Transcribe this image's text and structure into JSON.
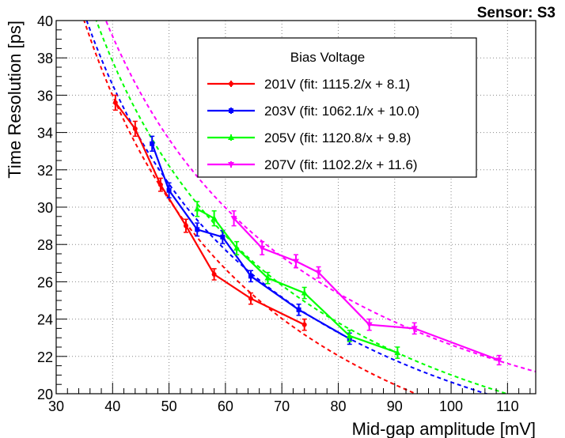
{
  "chart_data": {
    "type": "line",
    "title": "Sensor: S3",
    "xlabel": "Mid-gap amplitude [mV]",
    "ylabel": "Time Resolution [ps]",
    "xlim": [
      30,
      115
    ],
    "ylim": [
      20,
      40
    ],
    "x_ticks": [
      30,
      40,
      50,
      60,
      70,
      80,
      90,
      100,
      110
    ],
    "y_ticks": [
      20,
      22,
      24,
      26,
      28,
      30,
      32,
      34,
      36,
      38,
      40
    ],
    "grid": true,
    "legend": {
      "title": "Bias Voltage",
      "placement": "top-center"
    },
    "series": [
      {
        "name": "201V (fit: 1115.2/x + 8.1)",
        "color": "#ff0000",
        "marker": "circle",
        "fit": {
          "a": 1115.2,
          "b": 8.1
        },
        "x": [
          40.5,
          44,
          48.5,
          53,
          58,
          64.5,
          74
        ],
        "y": [
          35.6,
          34.2,
          31.2,
          29.0,
          26.4,
          25.1,
          23.7
        ],
        "yerr": [
          0.4,
          0.4,
          0.35,
          0.35,
          0.3,
          0.3,
          0.3
        ]
      },
      {
        "name": "203V (fit: 1062.1/x + 10.0)",
        "color": "#0000ff",
        "marker": "square",
        "fit": {
          "a": 1062.1,
          "b": 10.0
        },
        "x": [
          47,
          50,
          55,
          59.5,
          64.5,
          73,
          82
        ],
        "y": [
          33.4,
          30.9,
          28.8,
          28.4,
          26.3,
          24.5,
          22.95
        ],
        "yerr": [
          0.4,
          0.4,
          0.35,
          0.35,
          0.3,
          0.3,
          0.3
        ]
      },
      {
        "name": "205V (fit: 1120.8/x + 9.8)",
        "color": "#00ff00",
        "marker": "triangle-up",
        "fit": {
          "a": 1120.8,
          "b": 9.8
        },
        "x": [
          55,
          58,
          62,
          67.5,
          74,
          82,
          90.5
        ],
        "y": [
          29.9,
          29.4,
          27.8,
          26.2,
          25.4,
          23.1,
          22.2
        ],
        "yerr": [
          0.4,
          0.4,
          0.35,
          0.3,
          0.3,
          0.3,
          0.3
        ]
      },
      {
        "name": "207V (fit: 1102.2/x + 11.6)",
        "color": "#ff00ff",
        "marker": "triangle-down",
        "fit": {
          "a": 1102.2,
          "b": 11.6
        },
        "x": [
          61.5,
          66.5,
          72.5,
          76.5,
          85.5,
          93.5,
          108.5
        ],
        "y": [
          29.4,
          27.8,
          27.1,
          26.5,
          23.7,
          23.5,
          21.8
        ],
        "yerr": [
          0.4,
          0.35,
          0.35,
          0.3,
          0.3,
          0.3,
          0.25
        ]
      }
    ]
  }
}
